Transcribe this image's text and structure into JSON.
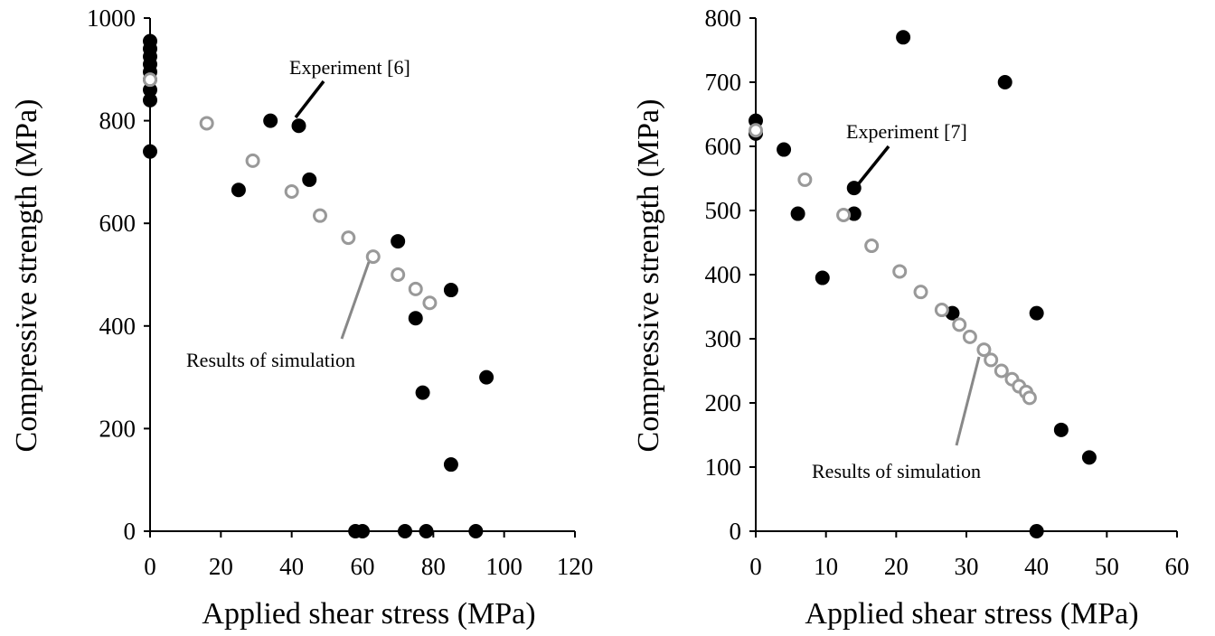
{
  "chart_data": [
    {
      "type": "scatter",
      "xlabel": "Applied shear stress (MPa)",
      "ylabel": "Compressive strength (MPa)",
      "xlim": [
        0,
        120
      ],
      "ylim": [
        0,
        1000
      ],
      "xticks": [
        0,
        20,
        40,
        60,
        80,
        100,
        120
      ],
      "yticks": [
        0,
        200,
        400,
        600,
        800,
        1000
      ],
      "grid": false,
      "series": [
        {
          "name": "Experiment [6]",
          "marker": "filled-circle",
          "color": "#000000",
          "points": [
            [
              0,
              955
            ],
            [
              0,
              940
            ],
            [
              0,
              925
            ],
            [
              0,
              910
            ],
            [
              0,
              895
            ],
            [
              0,
              880
            ],
            [
              0,
              860
            ],
            [
              0,
              840
            ],
            [
              0,
              740
            ],
            [
              25,
              665
            ],
            [
              34,
              800
            ],
            [
              42,
              790
            ],
            [
              45,
              685
            ],
            [
              70,
              565
            ],
            [
              75,
              415
            ],
            [
              77,
              270
            ],
            [
              85,
              470
            ],
            [
              85,
              130
            ],
            [
              95,
              300
            ],
            [
              58,
              0
            ],
            [
              60,
              0
            ],
            [
              72,
              0
            ],
            [
              78,
              0
            ],
            [
              92,
              0
            ]
          ]
        },
        {
          "name": "Results of simulation",
          "marker": "open-circle",
          "color": "#999999",
          "points": [
            [
              0,
              880
            ],
            [
              16,
              795
            ],
            [
              29,
              722
            ],
            [
              40,
              662
            ],
            [
              48,
              615
            ],
            [
              56,
              572
            ],
            [
              63,
              535
            ],
            [
              70,
              500
            ],
            [
              75,
              472
            ],
            [
              79,
              445
            ]
          ]
        }
      ],
      "annotations": [
        {
          "text": "Experiment [6]",
          "points_to": [
            42,
            790
          ]
        },
        {
          "text": "Results of simulation",
          "points_to": [
            63,
            535
          ]
        }
      ]
    },
    {
      "type": "scatter",
      "xlabel": "Applied shear stress (MPa)",
      "ylabel": "Compressive strength (MPa)",
      "xlim": [
        0,
        60
      ],
      "ylim": [
        0,
        800
      ],
      "xticks": [
        0,
        10,
        20,
        30,
        40,
        50,
        60
      ],
      "yticks": [
        0,
        100,
        200,
        300,
        400,
        500,
        600,
        700,
        800
      ],
      "grid": false,
      "series": [
        {
          "name": "Experiment [7]",
          "marker": "filled-circle",
          "color": "#000000",
          "points": [
            [
              0,
              640
            ],
            [
              0,
              620
            ],
            [
              4,
              595
            ],
            [
              6,
              495
            ],
            [
              9.5,
              395
            ],
            [
              14,
              535
            ],
            [
              14,
              495
            ],
            [
              21,
              770
            ],
            [
              28,
              340
            ],
            [
              35.5,
              700
            ],
            [
              40,
              340
            ],
            [
              40,
              0
            ],
            [
              43.5,
              158
            ],
            [
              47.5,
              115
            ]
          ]
        },
        {
          "name": "Results of simulation",
          "marker": "open-circle",
          "color": "#999999",
          "points": [
            [
              0,
              625
            ],
            [
              7,
              548
            ],
            [
              12.5,
              493
            ],
            [
              16.5,
              445
            ],
            [
              20.5,
              405
            ],
            [
              23.5,
              373
            ],
            [
              26.5,
              345
            ],
            [
              29,
              322
            ],
            [
              30.5,
              303
            ],
            [
              32.5,
              283
            ],
            [
              33.5,
              267
            ],
            [
              35,
              250
            ],
            [
              36.5,
              237
            ],
            [
              37.5,
              226
            ],
            [
              38.5,
              217
            ],
            [
              39,
              208
            ]
          ]
        }
      ],
      "annotations": [
        {
          "text": "Experiment [7]",
          "points_to": [
            14,
            535
          ]
        },
        {
          "text": "Results of simulation",
          "points_to": [
            32,
            283
          ]
        }
      ]
    }
  ]
}
